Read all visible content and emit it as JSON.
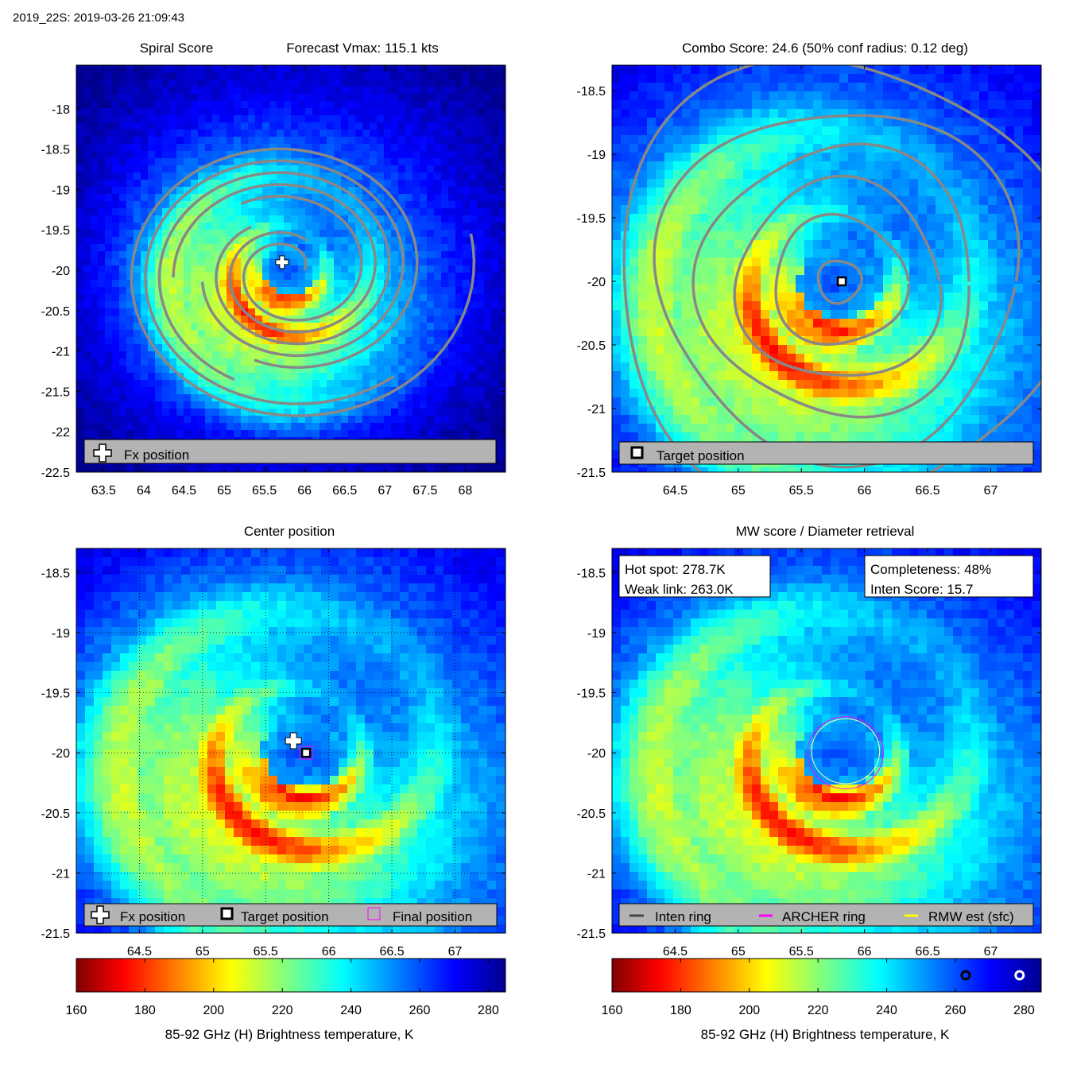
{
  "header": {
    "title": "2019_22S: 2019-03-26 21:09:43"
  },
  "panels": {
    "spiral": {
      "title_left": "Spiral Score",
      "title_right": "Forecast Vmax: 115.1 kts",
      "legend": [
        "Fx position"
      ]
    },
    "combo": {
      "title": "Combo Score: 24.6  (50% conf radius: 0.12 deg)",
      "legend": [
        "Target position"
      ]
    },
    "center": {
      "title": "Center position",
      "legend": [
        "Fx position",
        "Target position",
        "Final position"
      ]
    },
    "mw": {
      "title": "MW score / Diameter retrieval",
      "box_left": [
        "Hot spot: 278.7K",
        "Weak link: 263.0K"
      ],
      "box_right": [
        "Completeness: 48%",
        "Inten Score: 15.7"
      ],
      "legend": [
        "Inten ring",
        "ARCHER ring",
        "RMW est (sfc)"
      ]
    }
  },
  "colorbar": {
    "label": "85-92 GHz (H) Brightness temperature, K",
    "ticks": [
      "160",
      "180",
      "200",
      "220",
      "240",
      "260",
      "280"
    ]
  },
  "colors": {
    "ring_gray": "#888888",
    "archer_ring": "#ff00ff",
    "rmw_ring": "#ffff00",
    "inten_ring": "#444444"
  },
  "chart_data": [
    {
      "type": "heatmap",
      "title": "Spiral Score",
      "subtitle": "Forecast Vmax: 115.1 kts",
      "xticks": [
        63.5,
        64,
        64.5,
        65,
        65.5,
        66,
        66.5,
        67,
        67.5,
        68
      ],
      "yticks": [
        -18,
        -18.5,
        -19,
        -19.5,
        -20,
        -20.5,
        -21,
        -21.5,
        -22,
        -22.5
      ],
      "xlim": [
        63.16,
        68.5
      ],
      "ylim": [
        -22.5,
        -17.46
      ],
      "center": [
        65.8,
        -20.0
      ],
      "markers": {
        "fx_position": [
          65.72,
          -19.9
        ]
      },
      "overlay": "spiral contours (gray)"
    },
    {
      "type": "heatmap",
      "title": "Combo Score: 24.6  (50% conf radius: 0.12 deg)",
      "xticks": [
        64.5,
        65,
        65.5,
        66,
        66.5,
        67
      ],
      "yticks": [
        -18.5,
        -19,
        -19.5,
        -20,
        -20.5,
        -21,
        -21.5
      ],
      "xlim": [
        64.0,
        67.4
      ],
      "ylim": [
        -21.5,
        -18.3
      ],
      "center": [
        65.8,
        -20.0
      ],
      "markers": {
        "target_position": [
          65.82,
          -20.0
        ]
      },
      "overlay": "combo score contours (gray)"
    },
    {
      "type": "heatmap",
      "title": "Center position",
      "xticks": [
        64.5,
        65,
        65.5,
        66,
        66.5,
        67
      ],
      "yticks": [
        -18.5,
        -19,
        -19.5,
        -20,
        -20.5,
        -21,
        -21.5
      ],
      "xlim": [
        64.0,
        67.4
      ],
      "ylim": [
        -21.5,
        -18.3
      ],
      "center": [
        65.8,
        -20.0
      ],
      "markers": {
        "fx_position": [
          65.72,
          -19.9
        ],
        "target_position": [
          65.82,
          -20.0
        ],
        "final_position": [
          65.82,
          -20.0
        ]
      },
      "grid": true
    },
    {
      "type": "heatmap",
      "title": "MW score / Diameter retrieval",
      "xticks": [
        64.5,
        65,
        65.5,
        66,
        66.5,
        67
      ],
      "yticks": [
        -18.5,
        -19,
        -19.5,
        -20,
        -20.5,
        -21,
        -21.5
      ],
      "xlim": [
        64.0,
        67.4
      ],
      "ylim": [
        -21.5,
        -18.3
      ],
      "center": [
        65.8,
        -20.0
      ],
      "rings": {
        "archer_ring_radius_deg": 0.3,
        "rmw_ring_radius_deg": 0.27,
        "center": [
          65.85,
          -20.0
        ]
      },
      "colorbar_markers": {
        "weak_link_K": 263.0,
        "hot_spot_K": 278.7
      }
    }
  ]
}
